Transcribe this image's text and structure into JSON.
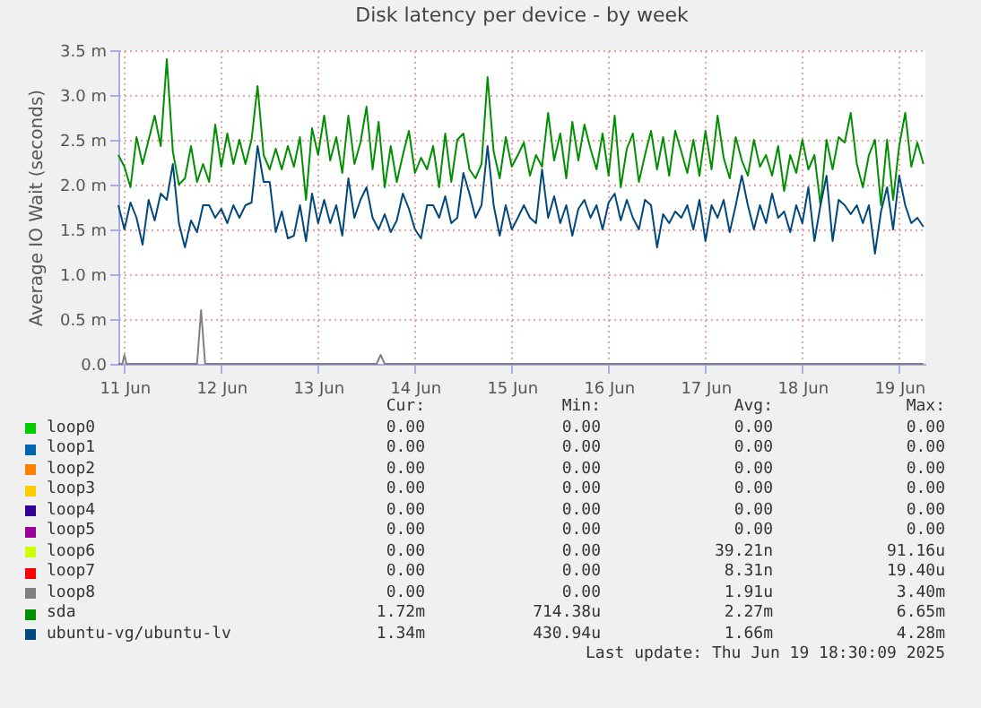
{
  "chart_data": {
    "type": "line",
    "title": "Disk latency per device - by week",
    "ylabel": "Average IO Wait (seconds)",
    "x": [
      "2025-06-11T10:30",
      "2025-06-11T12:00",
      "2025-06-11T13:30",
      "2025-06-11T15:00",
      "2025-06-11T16:30",
      "2025-06-11T18:00",
      "2025-06-11T19:30",
      "2025-06-11T21:00",
      "2025-06-11T22:30",
      "2025-06-12T00:00",
      "2025-06-12T01:30",
      "2025-06-12T03:00",
      "2025-06-12T04:30",
      "2025-06-12T06:00",
      "2025-06-12T07:30",
      "2025-06-12T09:00",
      "2025-06-12T10:30",
      "2025-06-12T12:00",
      "2025-06-12T13:30",
      "2025-06-12T15:00",
      "2025-06-12T16:30",
      "2025-06-12T18:00",
      "2025-06-12T19:30",
      "2025-06-12T21:00",
      "2025-06-12T22:30",
      "2025-06-13T00:00",
      "2025-06-13T01:30",
      "2025-06-13T03:00",
      "2025-06-13T04:30",
      "2025-06-13T06:00",
      "2025-06-13T07:30",
      "2025-06-13T09:00",
      "2025-06-13T10:30",
      "2025-06-13T12:00",
      "2025-06-13T13:30",
      "2025-06-13T15:00",
      "2025-06-13T16:30",
      "2025-06-13T18:00",
      "2025-06-13T19:30",
      "2025-06-13T21:00",
      "2025-06-13T22:30",
      "2025-06-14T00:00",
      "2025-06-14T01:30",
      "2025-06-14T03:00",
      "2025-06-14T04:30",
      "2025-06-14T06:00",
      "2025-06-14T07:30",
      "2025-06-14T09:00",
      "2025-06-14T10:30",
      "2025-06-14T12:00",
      "2025-06-14T13:30",
      "2025-06-14T15:00",
      "2025-06-14T16:30",
      "2025-06-14T18:00",
      "2025-06-14T19:30",
      "2025-06-14T21:00",
      "2025-06-14T22:30",
      "2025-06-15T00:00",
      "2025-06-15T01:30",
      "2025-06-15T03:00",
      "2025-06-15T04:30",
      "2025-06-15T06:00",
      "2025-06-15T07:30",
      "2025-06-15T09:00",
      "2025-06-15T10:30",
      "2025-06-15T12:00",
      "2025-06-15T13:30",
      "2025-06-15T15:00",
      "2025-06-15T16:30",
      "2025-06-15T18:00",
      "2025-06-15T19:30",
      "2025-06-15T21:00",
      "2025-06-15T22:30",
      "2025-06-16T00:00",
      "2025-06-16T01:30",
      "2025-06-16T03:00",
      "2025-06-16T04:30",
      "2025-06-16T06:00",
      "2025-06-16T07:30",
      "2025-06-16T09:00",
      "2025-06-16T10:30",
      "2025-06-16T12:00",
      "2025-06-16T13:30",
      "2025-06-16T15:00",
      "2025-06-16T16:30",
      "2025-06-16T18:00",
      "2025-06-16T19:30",
      "2025-06-16T21:00",
      "2025-06-16T22:30",
      "2025-06-17T00:00",
      "2025-06-17T01:30",
      "2025-06-17T03:00",
      "2025-06-17T04:30",
      "2025-06-17T06:00",
      "2025-06-17T07:30",
      "2025-06-17T09:00",
      "2025-06-17T10:30",
      "2025-06-17T12:00",
      "2025-06-17T13:30",
      "2025-06-17T15:00",
      "2025-06-17T16:30",
      "2025-06-17T18:00",
      "2025-06-17T19:30",
      "2025-06-17T21:00",
      "2025-06-17T22:30",
      "2025-06-18T00:00",
      "2025-06-18T01:30",
      "2025-06-18T03:00",
      "2025-06-18T04:30",
      "2025-06-18T06:00",
      "2025-06-18T07:30",
      "2025-06-18T09:00",
      "2025-06-18T10:30",
      "2025-06-18T12:00",
      "2025-06-18T13:30",
      "2025-06-18T15:00",
      "2025-06-18T16:30",
      "2025-06-18T18:00",
      "2025-06-18T19:30",
      "2025-06-18T21:00",
      "2025-06-18T22:30",
      "2025-06-19T00:00",
      "2025-06-19T01:30",
      "2025-06-19T03:00",
      "2025-06-19T04:30",
      "2025-06-19T06:00",
      "2025-06-19T07:30",
      "2025-06-19T09:00",
      "2025-06-19T10:30",
      "2025-06-19T12:00",
      "2025-06-19T13:30",
      "2025-06-19T15:00",
      "2025-06-19T16:30",
      "2025-06-19T18:00"
    ],
    "series": [
      {
        "name": "loop0",
        "color": "#00cc00",
        "values": [
          null,
          null,
          null,
          null,
          null,
          null,
          null,
          null,
          null,
          null,
          null,
          null,
          null,
          null,
          null,
          null,
          null,
          null,
          null,
          null,
          null,
          null,
          null,
          null,
          null,
          null,
          null,
          null,
          null,
          null,
          null,
          null,
          null,
          null,
          null,
          null,
          null,
          null,
          null,
          null,
          null,
          null,
          null,
          null,
          null,
          null,
          null,
          null,
          null,
          null,
          null,
          null,
          null,
          null,
          null,
          null,
          null,
          null,
          null,
          null,
          null,
          null,
          null,
          null,
          null,
          null,
          null,
          null,
          null,
          null,
          null,
          null,
          null,
          null,
          null,
          null,
          null,
          null,
          null,
          null,
          null,
          null,
          null,
          null,
          null,
          null,
          null,
          null,
          null,
          null,
          null,
          null,
          null,
          null,
          null,
          null,
          null,
          null,
          null,
          null,
          null,
          null,
          null,
          null,
          null,
          null,
          null,
          null,
          null,
          null,
          null,
          null,
          null,
          null,
          null,
          null,
          null,
          null,
          null,
          null,
          null,
          null,
          null,
          null,
          null,
          null,
          null,
          null,
          null,
          null,
          null,
          null,
          null,
          null
        ]
      },
      {
        "name": "loop1",
        "color": "#0066b3",
        "values": [
          null,
          null,
          null,
          null,
          null,
          null,
          null,
          null,
          null,
          null,
          null,
          null,
          null,
          null,
          null,
          null,
          null,
          null,
          null,
          null,
          null,
          null,
          null,
          null,
          null,
          null,
          null,
          null,
          null,
          null,
          null,
          null,
          null,
          null,
          null,
          null,
          null,
          null,
          null,
          null,
          null,
          null,
          null,
          null,
          null,
          null,
          null,
          null,
          null,
          null,
          null,
          null,
          null,
          null,
          null,
          null,
          null,
          null,
          null,
          null,
          null,
          null,
          null,
          null,
          null,
          null,
          null,
          null,
          null,
          null,
          null,
          null,
          null,
          null,
          null,
          null,
          null,
          null,
          null,
          null,
          null,
          null,
          null,
          null,
          null,
          null,
          null,
          null,
          null,
          null,
          null,
          null,
          null,
          null,
          null,
          null,
          null,
          null,
          null,
          null,
          null,
          null,
          null,
          null,
          null,
          null,
          null,
          null,
          null,
          null,
          null,
          null,
          null,
          null,
          null,
          null,
          null,
          null,
          null,
          null,
          null,
          null,
          null,
          null,
          null,
          null,
          null,
          null,
          null,
          null,
          null,
          null,
          null,
          null
        ]
      },
      {
        "name": "loop2",
        "color": "#ff8000",
        "values": [
          null,
          null,
          null,
          null,
          null,
          null,
          null,
          null,
          null,
          null,
          null,
          null,
          null,
          null,
          null,
          null,
          null,
          null,
          null,
          null,
          null,
          null,
          null,
          null,
          null,
          null,
          null,
          null,
          null,
          null,
          null,
          null,
          null,
          null,
          null,
          null,
          null,
          null,
          null,
          null,
          null,
          null,
          null,
          null,
          null,
          null,
          null,
          null,
          null,
          null,
          null,
          null,
          null,
          null,
          null,
          null,
          null,
          null,
          null,
          null,
          null,
          null,
          null,
          null,
          null,
          null,
          null,
          null,
          null,
          null,
          null,
          null,
          null,
          null,
          null,
          null,
          null,
          null,
          null,
          null,
          null,
          null,
          null,
          null,
          null,
          null,
          null,
          null,
          null,
          null,
          null,
          null,
          null,
          null,
          null,
          null,
          null,
          null,
          null,
          null,
          null,
          null,
          null,
          null,
          null,
          null,
          null,
          null,
          null,
          null,
          null,
          null,
          null,
          null,
          null,
          null,
          null,
          null,
          null,
          null,
          null,
          null,
          null,
          null,
          null,
          null,
          null,
          null,
          null,
          null,
          null,
          null,
          null,
          null
        ]
      },
      {
        "name": "loop3",
        "color": "#ffcc00",
        "values": [
          null,
          null,
          null,
          null,
          null,
          null,
          null,
          null,
          null,
          null,
          null,
          null,
          null,
          null,
          null,
          null,
          null,
          null,
          null,
          null,
          null,
          null,
          null,
          null,
          null,
          null,
          null,
          null,
          null,
          null,
          null,
          null,
          null,
          null,
          null,
          null,
          null,
          null,
          null,
          null,
          null,
          null,
          null,
          null,
          null,
          null,
          null,
          null,
          null,
          null,
          null,
          null,
          null,
          null,
          null,
          null,
          null,
          null,
          null,
          null,
          null,
          null,
          null,
          null,
          null,
          null,
          null,
          null,
          null,
          null,
          null,
          null,
          null,
          null,
          null,
          null,
          null,
          null,
          null,
          null,
          null,
          null,
          null,
          null,
          null,
          null,
          null,
          null,
          null,
          null,
          null,
          null,
          null,
          null,
          null,
          null,
          null,
          null,
          null,
          null,
          null,
          null,
          null,
          null,
          null,
          null,
          null,
          null,
          null,
          null,
          null,
          null,
          null,
          null,
          null,
          null,
          null,
          null,
          null,
          null,
          null,
          null,
          null,
          null,
          null,
          null,
          null,
          null,
          null,
          null,
          null,
          null,
          null,
          null
        ]
      },
      {
        "name": "loop4",
        "color": "#330099",
        "values": [
          null,
          null,
          null,
          null,
          null,
          null,
          null,
          null,
          null,
          null,
          null,
          null,
          null,
          null,
          null,
          null,
          null,
          null,
          null,
          null,
          null,
          null,
          null,
          null,
          null,
          null,
          null,
          null,
          null,
          null,
          null,
          null,
          null,
          null,
          null,
          null,
          null,
          null,
          null,
          null,
          null,
          null,
          null,
          null,
          null,
          null,
          null,
          null,
          null,
          null,
          null,
          null,
          null,
          null,
          null,
          null,
          null,
          null,
          null,
          null,
          null,
          null,
          null,
          null,
          null,
          null,
          null,
          null,
          null,
          null,
          null,
          null,
          null,
          null,
          null,
          null,
          null,
          null,
          null,
          null,
          null,
          null,
          null,
          null,
          null,
          null,
          null,
          null,
          null,
          null,
          null,
          null,
          null,
          null,
          null,
          null,
          null,
          null,
          null,
          null,
          null,
          null,
          null,
          null,
          null,
          null,
          null,
          null,
          null,
          null,
          null,
          null,
          null,
          null,
          null,
          null,
          null,
          null,
          null,
          null,
          null,
          null,
          null,
          null,
          null,
          null,
          null,
          null,
          null,
          null,
          null,
          null,
          null,
          null
        ]
      },
      {
        "name": "loop5",
        "color": "#990099",
        "values": [
          null,
          null,
          null,
          null,
          null,
          null,
          null,
          null,
          null,
          null,
          null,
          null,
          null,
          null,
          null,
          null,
          null,
          null,
          null,
          null,
          null,
          null,
          null,
          null,
          null,
          null,
          null,
          null,
          null,
          null,
          null,
          null,
          null,
          null,
          null,
          null,
          null,
          null,
          null,
          null,
          null,
          null,
          null,
          null,
          null,
          null,
          null,
          null,
          null,
          null,
          null,
          null,
          null,
          null,
          null,
          null,
          null,
          null,
          null,
          null,
          null,
          null,
          null,
          null,
          null,
          null,
          null,
          null,
          null,
          null,
          null,
          null,
          null,
          null,
          null,
          null,
          null,
          null,
          null,
          null,
          null,
          null,
          null,
          null,
          null,
          null,
          null,
          null,
          null,
          null,
          null,
          null,
          null,
          null,
          null,
          null,
          null,
          null,
          null,
          null,
          null,
          null,
          null,
          null,
          null,
          null,
          null,
          null,
          null,
          null,
          null,
          null,
          null,
          null,
          null,
          null,
          null,
          null,
          null,
          null,
          null,
          null,
          null,
          null,
          null,
          null,
          null,
          null,
          null,
          null,
          null,
          null,
          null,
          null
        ]
      },
      {
        "name": "loop6",
        "color": "#ccff00",
        "values": [
          null,
          null,
          null,
          null,
          null,
          null,
          null,
          null,
          null,
          null,
          null,
          null,
          null,
          null,
          null,
          null,
          null,
          null,
          null,
          null,
          null,
          null,
          null,
          null,
          null,
          null,
          null,
          null,
          null,
          null,
          null,
          null,
          null,
          null,
          null,
          null,
          null,
          null,
          null,
          null,
          null,
          null,
          null,
          null,
          null,
          null,
          null,
          null,
          null,
          null,
          null,
          null,
          null,
          null,
          null,
          null,
          null,
          null,
          null,
          null,
          null,
          null,
          null,
          null,
          null,
          null,
          null,
          null,
          null,
          null,
          null,
          null,
          null,
          null,
          null,
          null,
          null,
          null,
          null,
          null,
          null,
          null,
          null,
          null,
          null,
          null,
          null,
          null,
          null,
          null,
          null,
          null,
          null,
          null,
          null,
          null,
          null,
          null,
          null,
          null,
          null,
          null,
          null,
          null,
          null,
          null,
          null,
          null,
          null,
          null,
          null,
          null,
          null,
          null,
          null,
          null,
          null,
          null,
          null,
          null,
          null,
          null,
          null,
          null,
          null,
          null,
          null,
          null,
          null,
          null,
          null,
          null,
          null,
          null
        ]
      },
      {
        "name": "loop7",
        "color": "#ff0000",
        "values": [
          null,
          null,
          null,
          null,
          null,
          null,
          null,
          null,
          null,
          null,
          null,
          null,
          null,
          null,
          null,
          null,
          null,
          null,
          null,
          null,
          null,
          null,
          null,
          null,
          null,
          null,
          null,
          null,
          null,
          null,
          null,
          null,
          null,
          null,
          null,
          null,
          null,
          null,
          null,
          null,
          null,
          null,
          null,
          null,
          null,
          null,
          null,
          null,
          null,
          null,
          null,
          null,
          null,
          null,
          null,
          null,
          null,
          null,
          null,
          null,
          null,
          null,
          null,
          null,
          null,
          null,
          null,
          null,
          null,
          null,
          null,
          null,
          null,
          null,
          null,
          null,
          null,
          null,
          null,
          null,
          null,
          null,
          null,
          null,
          null,
          null,
          null,
          null,
          null,
          null,
          null,
          null,
          null,
          null,
          null,
          null,
          null,
          null,
          null,
          null,
          null,
          null,
          null,
          null,
          null,
          null,
          null,
          null,
          null,
          null,
          null,
          null,
          null,
          null,
          null,
          null,
          null,
          null,
          null,
          null,
          null,
          null,
          null,
          null,
          null,
          null,
          null,
          null,
          null,
          null,
          null,
          null,
          null,
          null
        ]
      },
      {
        "name": "loop8",
        "color": "#808080",
        "x": [
          "2025-06-11T10:30",
          "2025-06-11T11:30",
          "2025-06-11T12:00",
          "2025-06-11T12:30",
          "2025-06-12T06:00",
          "2025-06-12T07:00",
          "2025-06-12T08:00",
          "2025-06-14T02:30",
          "2025-06-14T03:30",
          "2025-06-14T04:30",
          "2025-06-19T18:00"
        ],
        "values": [
          0,
          0,
          0.1,
          0,
          0,
          0.6,
          0,
          0,
          0.1,
          0,
          0
        ]
      },
      {
        "name": "sda",
        "color": "#008f00",
        "values": [
          2.33,
          2.2,
          1.97,
          2.53,
          2.23,
          2.5,
          2.77,
          2.43,
          3.4,
          2.37,
          2.0,
          2.07,
          2.43,
          2.03,
          2.23,
          2.03,
          2.67,
          2.2,
          2.57,
          2.23,
          2.5,
          2.23,
          2.5,
          3.1,
          2.33,
          2.17,
          2.4,
          2.17,
          2.43,
          2.2,
          2.53,
          1.83,
          2.63,
          2.33,
          2.77,
          2.27,
          2.53,
          2.13,
          2.77,
          2.23,
          2.47,
          2.87,
          2.17,
          2.7,
          1.97,
          2.43,
          2.03,
          2.33,
          2.6,
          2.13,
          2.3,
          2.17,
          2.43,
          1.97,
          2.57,
          2.03,
          2.5,
          2.57,
          2.17,
          2.07,
          2.23,
          3.2,
          2.37,
          2.07,
          2.53,
          2.2,
          2.33,
          2.47,
          2.1,
          2.33,
          2.2,
          2.8,
          2.27,
          2.57,
          2.07,
          2.7,
          2.27,
          2.67,
          2.4,
          2.17,
          2.57,
          2.1,
          2.77,
          1.97,
          2.4,
          2.57,
          2.03,
          2.33,
          2.6,
          2.17,
          2.53,
          2.1,
          2.6,
          2.37,
          2.13,
          2.5,
          2.1,
          2.6,
          2.17,
          2.77,
          2.3,
          2.07,
          2.53,
          2.27,
          2.1,
          2.5,
          2.2,
          2.33,
          2.1,
          2.43,
          1.93,
          2.33,
          2.13,
          2.5,
          2.17,
          2.33,
          1.77,
          2.5,
          2.17,
          2.53,
          2.47,
          2.8,
          2.23,
          1.97,
          2.33,
          2.5,
          1.77,
          2.5,
          1.83,
          2.43,
          2.8,
          2.2,
          2.47,
          2.23
        ]
      },
      {
        "name": "ubuntu-vg/ubuntu-lv",
        "color": "#00487d",
        "values": [
          1.77,
          1.5,
          1.8,
          1.63,
          1.33,
          1.83,
          1.6,
          1.9,
          1.83,
          2.23,
          1.57,
          1.3,
          1.6,
          1.47,
          1.77,
          1.77,
          1.63,
          1.73,
          1.57,
          1.77,
          1.63,
          1.77,
          1.8,
          2.43,
          2.03,
          2.03,
          1.47,
          1.7,
          1.4,
          1.43,
          1.77,
          1.37,
          1.9,
          1.57,
          1.83,
          1.57,
          1.77,
          1.43,
          2.07,
          1.63,
          1.83,
          1.97,
          1.63,
          1.5,
          1.67,
          1.47,
          1.6,
          1.9,
          1.73,
          1.5,
          1.4,
          1.77,
          1.77,
          1.63,
          1.87,
          1.57,
          1.63,
          2.13,
          1.9,
          1.63,
          1.77,
          2.43,
          1.77,
          1.43,
          1.77,
          1.5,
          1.63,
          1.77,
          1.63,
          1.57,
          2.17,
          1.63,
          1.87,
          1.57,
          1.77,
          1.43,
          1.73,
          1.83,
          1.63,
          1.77,
          1.5,
          1.8,
          1.9,
          1.6,
          1.83,
          1.63,
          1.5,
          1.83,
          1.77,
          1.3,
          1.67,
          1.57,
          1.7,
          1.63,
          1.77,
          1.5,
          1.83,
          1.37,
          1.77,
          1.63,
          1.83,
          1.47,
          1.77,
          2.1,
          1.77,
          1.5,
          1.77,
          1.57,
          1.9,
          1.63,
          1.7,
          1.47,
          1.77,
          1.57,
          1.97,
          1.37,
          1.77,
          2.1,
          1.37,
          1.83,
          1.77,
          1.67,
          1.77,
          1.57,
          1.77,
          1.23,
          1.7,
          1.97,
          1.5,
          2.1,
          1.77,
          1.57,
          1.63,
          1.53
        ]
      }
    ],
    "xlim": [
      "2025-06-11T10:30",
      "2025-06-19T18:30"
    ],
    "xticks": [
      {
        "value": "2025-06-11T12:00",
        "label": "11 Jun"
      },
      {
        "value": "2025-06-12T12:00",
        "label": "12 Jun"
      },
      {
        "value": "2025-06-13T12:00",
        "label": "13 Jun"
      },
      {
        "value": "2025-06-14T12:00",
        "label": "14 Jun"
      },
      {
        "value": "2025-06-15T12:00",
        "label": "15 Jun"
      },
      {
        "value": "2025-06-16T12:00",
        "label": "16 Jun"
      },
      {
        "value": "2025-06-17T12:00",
        "label": "17 Jun"
      },
      {
        "value": "2025-06-18T12:00",
        "label": "18 Jun"
      },
      {
        "value": "2025-06-19T12:00",
        "label": "19 Jun"
      }
    ],
    "ylim": [
      0,
      3.5
    ],
    "yticks": [
      {
        "value": 0,
        "label": "0.0"
      },
      {
        "value": 0.5,
        "label": "0.5 m"
      },
      {
        "value": 1,
        "label": "1.0 m"
      },
      {
        "value": 1.5,
        "label": "1.5 m"
      },
      {
        "value": 2,
        "label": "2.0 m"
      },
      {
        "value": 2.5,
        "label": "2.5 m"
      },
      {
        "value": 3,
        "label": "3.0 m"
      },
      {
        "value": 3.5,
        "label": "3.5 m"
      }
    ],
    "grid": true,
    "legend": "bottom",
    "marker": "none",
    "line_style": "solid",
    "annotations": [
      "Cur:",
      "Min:",
      "Avg:",
      "Max:",
      "0.00",
      "0.00",
      "0.00",
      "0.00",
      "0.00",
      "0.00",
      "0.00",
      "0.00",
      "0.00",
      "0.00",
      "0.00",
      "0.00",
      "0.00",
      "0.00",
      "0.00",
      "0.00",
      "0.00",
      "0.00",
      "0.00",
      "0.00",
      "0.00",
      "0.00",
      "0.00",
      "0.00",
      "0.00",
      "0.00",
      "39.21n",
      "91.16u",
      "0.00",
      "0.00",
      "8.31n",
      "19.40u",
      "0.00",
      "0.00",
      "1.91u",
      "3.40m",
      "1.72m",
      "714.38u",
      "2.27m",
      "6.65m",
      "1.34m",
      "430.94u",
      "1.66m",
      "4.28m",
      "Last update: Thu Jun 19 18:30:09 2025"
    ]
  }
}
